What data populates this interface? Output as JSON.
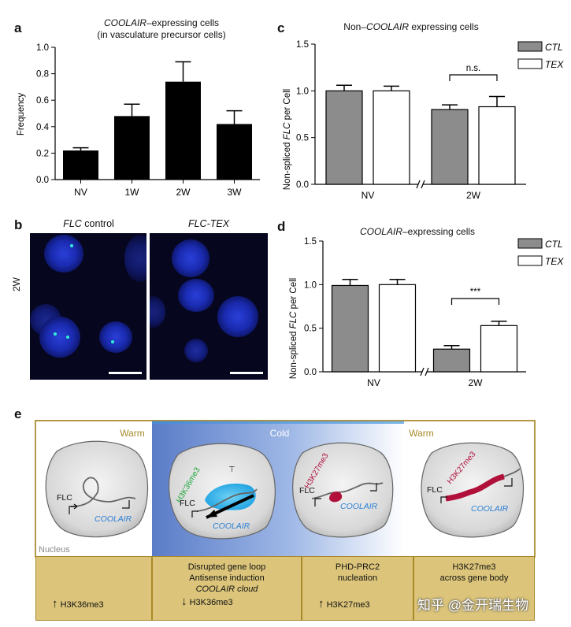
{
  "panels": {
    "a": {
      "letter": "a",
      "title_italic": "COOLAIR",
      "title_rest": "–expressing cells",
      "subtitle": "(in vasculature precursor cells)",
      "ylabel": "Frequency"
    },
    "b": {
      "letter": "b",
      "left_title_italic": "FLC",
      "left_title_rest": " control",
      "right_title": "FLC-TEX",
      "row_label": "2W"
    },
    "c": {
      "letter": "c",
      "title_pre": "Non–",
      "title_italic": "COOLAIR",
      "title_post": "  expressing cells",
      "ylabel_pre": "Non-spliced ",
      "ylabel_italic": "FLC",
      "ylabel_post": " per Cell",
      "legend": [
        "CTL",
        "TEX"
      ],
      "annotation": "n.s."
    },
    "d": {
      "letter": "d",
      "title_italic": "COOLAIR",
      "title_rest": "–expressing cells",
      "ylabel_pre": "Non-spliced ",
      "ylabel_italic": "FLC",
      "ylabel_post": " per Cell",
      "legend": [
        "CTL",
        "TEX"
      ],
      "annotation": "***"
    },
    "e": {
      "letter": "e",
      "top_labels": [
        "Warm",
        "Cold",
        "Warm"
      ],
      "nucleus_label": "Nucleus",
      "flc": "FLC",
      "coolair": "COOLAIR",
      "h3k36": "H3K36me3",
      "h3k27": "H3K27me3",
      "boxes": [
        {
          "lines": [],
          "mark": "H3K36me3",
          "arrow": "up"
        },
        {
          "lines": [
            "Disrupted gene loop",
            "Antisense induction",
            "COOLAIR cloud"
          ],
          "mark": "H3K36me3",
          "arrow": "down"
        },
        {
          "lines": [
            "PHD-PRC2",
            "nucleation"
          ],
          "mark": "H3K27me3",
          "arrow": "up"
        },
        {
          "lines": [
            "H3K27me3",
            "across gene body"
          ],
          "mark": "",
          "arrow": ""
        }
      ]
    }
  },
  "watermark": "知乎 @金开瑞生物",
  "colors": {
    "ctl": "#8c8c8c",
    "tex": "#ffffff",
    "bar_a": "#000000",
    "frame": "#a8892a",
    "box": "#dcc57a",
    "h3k27": "#b0103a",
    "h3k36": "#1fa83a",
    "coolair": "#2a7fd6"
  },
  "chart_data": [
    {
      "id": "a",
      "type": "bar",
      "categories": [
        "NV",
        "1W",
        "2W",
        "3W"
      ],
      "values": [
        0.22,
        0.48,
        0.74,
        0.42
      ],
      "errors": [
        0.02,
        0.09,
        0.15,
        0.1
      ],
      "ylim": [
        0,
        1.0
      ],
      "yticks": [
        "0.0",
        "0.2",
        "0.4",
        "0.6",
        "0.8",
        "1.0"
      ],
      "ytick_values": [
        0,
        0.2,
        0.4,
        0.6,
        0.8,
        1.0
      ],
      "xlabel": "",
      "ylabel": "Frequency"
    },
    {
      "id": "c",
      "type": "bar",
      "categories": [
        "NV",
        "2W"
      ],
      "series": [
        {
          "name": "CTL",
          "values": [
            1.0,
            0.8
          ],
          "errors": [
            0.06,
            0.05
          ]
        },
        {
          "name": "TEX",
          "values": [
            1.0,
            0.83
          ],
          "errors": [
            0.05,
            0.11
          ]
        }
      ],
      "ylim": [
        0,
        1.5
      ],
      "yticks": [
        "0.0",
        "0.5",
        "1.0",
        "1.5"
      ],
      "ytick_values": [
        0,
        0.5,
        1.0,
        1.5
      ]
    },
    {
      "id": "d",
      "type": "bar",
      "categories": [
        "NV",
        "2W"
      ],
      "series": [
        {
          "name": "CTL",
          "values": [
            0.99,
            0.26
          ],
          "errors": [
            0.07,
            0.04
          ]
        },
        {
          "name": "TEX",
          "values": [
            1.0,
            0.53
          ],
          "errors": [
            0.06,
            0.05
          ]
        }
      ],
      "ylim": [
        0,
        1.5
      ],
      "yticks": [
        "0.0",
        "0.5",
        "1.0",
        "1.5"
      ],
      "ytick_values": [
        0,
        0.5,
        1.0,
        1.5
      ]
    }
  ]
}
